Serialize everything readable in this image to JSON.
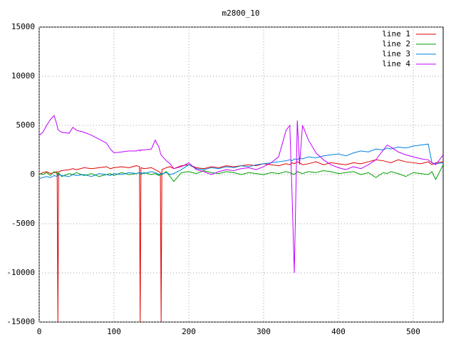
{
  "chart_data": {
    "type": "line",
    "title": "m2800_10",
    "x": [
      0,
      5,
      10,
      15,
      20,
      24,
      25,
      26,
      30,
      40,
      45,
      50,
      60,
      70,
      80,
      90,
      95,
      100,
      110,
      120,
      130,
      134,
      135,
      136,
      140,
      150,
      155,
      160,
      162,
      163,
      164,
      170,
      175,
      180,
      190,
      200,
      210,
      220,
      230,
      240,
      250,
      260,
      270,
      280,
      290,
      300,
      310,
      320,
      330,
      335,
      338,
      341,
      345,
      348,
      352,
      360,
      370,
      380,
      390,
      400,
      410,
      420,
      430,
      440,
      450,
      460,
      465,
      470,
      480,
      490,
      500,
      510,
      520,
      525,
      530,
      540
    ],
    "series": [
      {
        "name": "line 1",
        "color": "#e00000",
        "values": [
          0,
          200,
          300,
          100,
          200,
          300,
          -15000,
          300,
          400,
          500,
          600,
          500,
          700,
          600,
          700,
          800,
          600,
          700,
          800,
          700,
          900,
          800,
          -15000,
          700,
          600,
          700,
          500,
          300,
          200,
          -15000,
          500,
          700,
          800,
          600,
          900,
          1000,
          700,
          600,
          800,
          700,
          900,
          800,
          900,
          1000,
          900,
          1100,
          1000,
          900,
          1100,
          1000,
          1200,
          1100,
          1300,
          1200,
          1000,
          1100,
          1300,
          1000,
          1200,
          1100,
          1000,
          1200,
          1100,
          1300,
          1500,
          1400,
          1300,
          1200,
          1500,
          1300,
          1200,
          1100,
          1300,
          1000,
          1200,
          1300
        ]
      },
      {
        "name": "line 2",
        "color": "#00a000",
        "values": [
          100,
          0,
          200,
          -100,
          300,
          100,
          0,
          200,
          -200,
          100,
          0,
          200,
          -100,
          100,
          -200,
          0,
          100,
          -100,
          200,
          0,
          100,
          200,
          100,
          0,
          200,
          0,
          100,
          -100,
          0,
          100,
          0,
          300,
          -200,
          -700,
          200,
          300,
          100,
          400,
          200,
          100,
          300,
          200,
          0,
          200,
          100,
          0,
          200,
          100,
          300,
          200,
          100,
          0,
          300,
          200,
          100,
          300,
          200,
          400,
          300,
          100,
          200,
          300,
          0,
          200,
          -300,
          200,
          100,
          300,
          100,
          -200,
          200,
          100,
          0,
          300,
          -500,
          1000
        ]
      },
      {
        "name": "line 3",
        "color": "#0080e0",
        "values": [
          -400,
          -300,
          -200,
          -300,
          -100,
          -200,
          -100,
          0,
          -100,
          -200,
          0,
          -100,
          0,
          -200,
          100,
          0,
          -100,
          100,
          0,
          200,
          100,
          200,
          100,
          200,
          100,
          300,
          200,
          0,
          100,
          0,
          100,
          200,
          0,
          100,
          500,
          1000,
          600,
          500,
          700,
          600,
          800,
          700,
          900,
          800,
          1000,
          1100,
          1200,
          1300,
          1400,
          1500,
          1400,
          1600,
          1500,
          1700,
          1600,
          1800,
          1700,
          1900,
          2000,
          2100,
          1900,
          2200,
          2400,
          2300,
          2600,
          2500,
          2700,
          2600,
          2800,
          2700,
          2900,
          3000,
          3100,
          1200,
          1100,
          1200
        ]
      },
      {
        "name": "line 4",
        "color": "#c000ff",
        "values": [
          4000,
          4300,
          5000,
          5600,
          6000,
          5000,
          4600,
          4500,
          4300,
          4200,
          4800,
          4500,
          4300,
          4000,
          3600,
          3200,
          2600,
          2200,
          2300,
          2400,
          2400,
          2500,
          2400,
          2500,
          2500,
          2600,
          3500,
          2800,
          2200,
          2000,
          1900,
          1400,
          1100,
          600,
          800,
          1200,
          500,
          300,
          0,
          300,
          500,
          400,
          600,
          700,
          500,
          800,
          1200,
          1800,
          4500,
          5000,
          -2000,
          -10000,
          5500,
          1000,
          5000,
          3500,
          2200,
          1500,
          1000,
          700,
          500,
          800,
          600,
          1000,
          1500,
          2500,
          3000,
          2800,
          2300,
          2000,
          1800,
          1600,
          1500,
          1200,
          1000,
          2000
        ]
      }
    ],
    "xlim": [
      0,
      540
    ],
    "ylim": [
      -15000,
      15000
    ],
    "xticks": [
      0,
      100,
      200,
      300,
      400,
      500
    ],
    "yticks": [
      -15000,
      -10000,
      -5000,
      0,
      5000,
      10000,
      15000
    ],
    "grid": true,
    "legend": "top-right"
  }
}
